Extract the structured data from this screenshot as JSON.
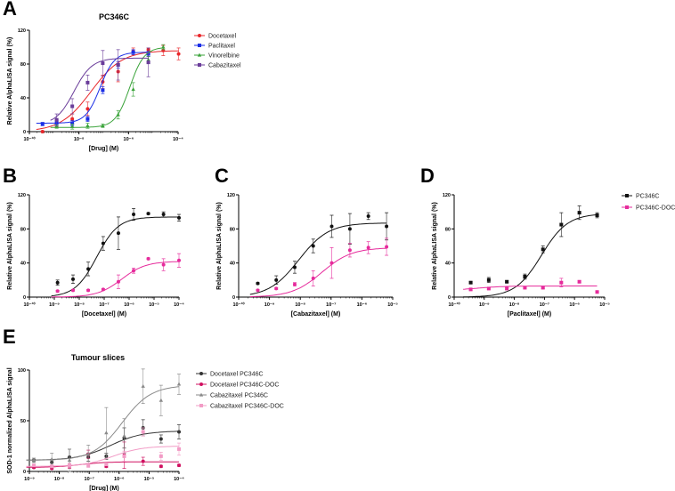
{
  "chart_data": [
    {
      "id": "A",
      "panel_label": "A",
      "type": "line",
      "title": "PC346C",
      "xlabel": "[Drug] (M)",
      "ylabel": "Relative AlphaLISA signal (%)",
      "xscale": "log10",
      "xlim_log10": [
        -10,
        -4
      ],
      "ylim": [
        0,
        120
      ],
      "xticks_log10": [
        -10,
        -8,
        -6,
        -4
      ],
      "xtick_labels": [
        "10⁻¹⁰",
        "10⁻⁸",
        "10⁻⁶",
        "10⁻⁴"
      ],
      "yticks": [
        0,
        40,
        80,
        120
      ],
      "ytick_labels": [
        "0",
        "40",
        "80",
        "120"
      ],
      "legend": "right",
      "series": [
        {
          "name": "Docetaxel",
          "color": "#e8262a",
          "marker": "circle",
          "x_log10": [
            -9.47,
            -8.9,
            -8.27,
            -7.65,
            -7.04,
            -6.42,
            -5.81,
            -5.2,
            -4.6,
            -3.98
          ],
          "y": [
            0,
            10,
            15,
            27,
            59,
            71,
            95,
            97,
            96,
            92
          ],
          "err": [
            1,
            4,
            6,
            8,
            8,
            12,
            4,
            2,
            6,
            7
          ],
          "fit": {
            "bottom": 0,
            "top": 96,
            "log_ec50": -7.5,
            "hill": 0.7
          }
        },
        {
          "name": "Paclitaxel",
          "color": "#1a2ee6",
          "marker": "square",
          "x_log10": [
            -9.47,
            -8.9,
            -8.27,
            -7.65,
            -7.04,
            -6.42,
            -5.81,
            -5.2
          ],
          "y": [
            9,
            10,
            10,
            15,
            49,
            79,
            94,
            92
          ],
          "err": [
            2,
            3,
            3,
            3,
            4,
            4,
            3,
            3
          ],
          "fit": {
            "bottom": 10,
            "top": 94,
            "log_ec50": -7.15,
            "hill": 1.5
          }
        },
        {
          "name": "Vinorelbine",
          "color": "#3aa33a",
          "marker": "triangle",
          "x_log10": [
            -8.9,
            -8.27,
            -7.65,
            -7.04,
            -6.42,
            -5.81,
            -5.2,
            -4.6
          ],
          "y": [
            6,
            6,
            7,
            7,
            20,
            50,
            85,
            100
          ],
          "err": [
            2,
            3,
            3,
            2,
            5,
            8,
            4,
            3
          ],
          "fit": {
            "bottom": 5,
            "top": 100,
            "log_ec50": -5.95,
            "hill": 1.5
          }
        },
        {
          "name": "Cabazitaxel",
          "color": "#6a3d9a",
          "marker": "square",
          "x_log10": [
            -8.9,
            -8.27,
            -7.65,
            -7.04,
            -6.42,
            -5.2
          ],
          "y": [
            14,
            30,
            58,
            81,
            79,
            82
          ],
          "err": [
            7,
            9,
            9,
            15,
            18,
            17
          ],
          "fit": {
            "bottom": 8,
            "top": 87,
            "log_ec50": -8.2,
            "hill": 1.2
          }
        }
      ]
    },
    {
      "id": "B",
      "panel_label": "B",
      "type": "line",
      "title": "",
      "xlabel": "[Docetaxel] (M)",
      "ylabel": "Relative AlphaLISA signal (%)",
      "xscale": "log10",
      "xlim_log10": [
        -10,
        -4
      ],
      "ylim": [
        0,
        120
      ],
      "xticks_log10": [
        -10,
        -9,
        -8,
        -7,
        -6,
        -5,
        -4
      ],
      "xtick_labels": [
        "10⁻¹⁰",
        "10⁻⁹",
        "10⁻⁸",
        "10⁻⁷",
        "10⁻⁶",
        "10⁻⁵",
        "10⁻⁴"
      ],
      "yticks": [
        0,
        40,
        80,
        120
      ],
      "ytick_labels": [
        "0",
        "40",
        "80",
        "120"
      ],
      "series": [
        {
          "name": "PC346C",
          "color": "#111111",
          "marker": "circle",
          "x_log10": [
            -8.87,
            -8.25,
            -7.64,
            -7.04,
            -6.43,
            -5.82,
            -5.23,
            -4.62,
            -4.0
          ],
          "y": [
            17,
            21,
            33,
            63,
            75,
            97,
            98,
            97,
            93
          ],
          "err": [
            3,
            5,
            8,
            8,
            19,
            7,
            1,
            3,
            4
          ],
          "fit": {
            "bottom": 0,
            "top": 94,
            "log_ec50": -7.3,
            "hill": 1.0
          }
        },
        {
          "name": "PC346C-DOC",
          "color": "#e62b9c",
          "marker": "circle",
          "x_log10": [
            -8.87,
            -8.25,
            -7.64,
            -7.04,
            -6.43,
            -5.82,
            -5.23,
            -4.62,
            -4.0
          ],
          "y": [
            7,
            8,
            8,
            9,
            18,
            31,
            45,
            38,
            43
          ],
          "err": [
            1,
            1,
            1,
            1,
            8,
            3,
            1,
            7,
            8
          ],
          "fit": {
            "bottom": 0,
            "top": 42,
            "log_ec50": -6.3,
            "hill": 0.9
          }
        }
      ]
    },
    {
      "id": "C",
      "panel_label": "C",
      "type": "line",
      "title": "",
      "xlabel": "[Cabazitaxel] (M)",
      "ylabel": "Relative AlphaLISA signal (%)",
      "xscale": "log10",
      "xlim_log10": [
        -10,
        -5
      ],
      "ylim": [
        0,
        120
      ],
      "xticks_log10": [
        -10,
        -9,
        -8,
        -7,
        -6,
        -5
      ],
      "xtick_labels": [
        "10⁻¹⁰",
        "10⁻⁹",
        "10⁻⁸",
        "10⁻⁷",
        "10⁻⁶",
        "10⁻⁵"
      ],
      "yticks": [
        0,
        40,
        80,
        120
      ],
      "ytick_labels": [
        "0",
        "40",
        "80",
        "120"
      ],
      "series": [
        {
          "name": "PC346C",
          "color": "#111111",
          "marker": "circle",
          "x_log10": [
            -9.38,
            -8.78,
            -8.18,
            -7.58,
            -6.98,
            -6.39,
            -5.79,
            -5.2
          ],
          "y": [
            16,
            20,
            35,
            60,
            83,
            80,
            95,
            83
          ],
          "err": [
            1,
            5,
            7,
            8,
            13,
            18,
            4,
            16
          ],
          "fit": {
            "bottom": 0,
            "top": 87,
            "log_ec50": -8.05,
            "hill": 0.9
          }
        },
        {
          "name": "PC346C-DOC",
          "color": "#e62b9c",
          "marker": "circle",
          "x_log10": [
            -9.38,
            -8.78,
            -8.18,
            -7.58,
            -6.98,
            -6.39,
            -5.79,
            -5.2
          ],
          "y": [
            8,
            10,
            15,
            22,
            40,
            55,
            58,
            59
          ],
          "err": [
            1,
            1,
            2,
            9,
            18,
            8,
            7,
            10
          ],
          "fit": {
            "bottom": 0,
            "top": 58,
            "log_ec50": -7.3,
            "hill": 0.9
          }
        }
      ]
    },
    {
      "id": "D",
      "panel_label": "D",
      "type": "line",
      "title": "",
      "xlabel": "[Paclitaxel] (M)",
      "ylabel": "Relative AlphaLISA signal (%)",
      "xscale": "log10",
      "xlim_log10": [
        -10,
        -5
      ],
      "ylim": [
        0,
        120
      ],
      "xticks_log10": [
        -10,
        -9,
        -8,
        -7,
        -6,
        -5
      ],
      "xtick_labels": [
        "10⁻¹⁰",
        "10⁻⁹",
        "10⁻⁸",
        "10⁻⁷",
        "10⁻⁶",
        "10⁻⁵"
      ],
      "yticks": [
        0,
        40,
        80,
        120
      ],
      "ytick_labels": [
        "0",
        "40",
        "80",
        "120"
      ],
      "legend": "right",
      "series": [
        {
          "name": "PC346C",
          "color": "#111111",
          "marker": "square",
          "x_log10": [
            -9.45,
            -8.85,
            -8.25,
            -7.65,
            -7.05,
            -6.44,
            -5.84,
            -5.25
          ],
          "y": [
            17,
            20,
            18,
            24,
            56,
            85,
            99,
            96
          ],
          "err": [
            1,
            3,
            1,
            3,
            4,
            14,
            8,
            3
          ],
          "fit": {
            "bottom": 0,
            "top": 98,
            "log_ec50": -7.1,
            "hill": 1.0
          }
        },
        {
          "name": "PC346C-DOC",
          "color": "#e62b9c",
          "marker": "square",
          "x_log10": [
            -9.45,
            -8.85,
            -8.25,
            -7.65,
            -7.05,
            -6.44,
            -5.84,
            -5.25
          ],
          "y": [
            9,
            10,
            10,
            11,
            11,
            17,
            18,
            6
          ],
          "err": [
            1,
            1,
            1,
            1,
            1,
            5,
            1,
            1
          ],
          "fit": {
            "bottom": 8,
            "top": 13,
            "log_ec50": -9.2,
            "hill": 1.0
          }
        }
      ]
    },
    {
      "id": "E",
      "panel_label": "E",
      "type": "line",
      "title": "Tumour slices",
      "xlabel": "[Drug] (M)",
      "ylabel": "SOD-1 normalized AlphaLISA signal",
      "xscale": "log10",
      "xlim_log10": [
        -9,
        -4
      ],
      "ylim": [
        0,
        100
      ],
      "xticks_log10": [
        -9,
        -8,
        -7,
        -6,
        -5,
        -4
      ],
      "xtick_labels": [
        "10⁻⁹",
        "10⁻⁸",
        "10⁻⁷",
        "10⁻⁶",
        "10⁻⁵",
        "10⁻⁴"
      ],
      "yticks": [
        0,
        50,
        100
      ],
      "ytick_labels": [
        "0",
        "50",
        "100"
      ],
      "legend": "right",
      "series": [
        {
          "name": "Docetaxel PC346C",
          "color": "#333333",
          "marker": "circle",
          "x_log10": [
            -8.85,
            -8.25,
            -7.66,
            -7.03,
            -6.43,
            -5.83,
            -5.2,
            -4.6,
            -4.0
          ],
          "y": [
            11,
            9,
            14,
            14,
            15,
            33,
            43,
            32,
            39
          ],
          "err": [
            2,
            3,
            8,
            4,
            3,
            10,
            8,
            4,
            7
          ],
          "fit": {
            "bottom": 11,
            "top": 40,
            "log_ec50": -6.3,
            "hill": 0.8
          }
        },
        {
          "name": "Docetaxel PC346C-DOC",
          "color": "#d01060",
          "marker": "circle",
          "x_log10": [
            -8.85,
            -8.25,
            -7.66,
            -7.03,
            -6.43,
            -5.83,
            -5.2,
            -4.6,
            -4.0
          ],
          "y": [
            4,
            3,
            5,
            17,
            5,
            16,
            10,
            5,
            6
          ],
          "err": [
            1,
            1,
            2,
            4,
            1,
            13,
            4,
            1,
            1
          ],
          "fit": {
            "bottom": 4,
            "top": 9.5,
            "log_ec50": -7.3,
            "hill": 1.0
          }
        },
        {
          "name": "Cabazitaxel PC346C",
          "color": "#8a8a8a",
          "marker": "triangle",
          "x_log10": [
            -8.85,
            -8.25,
            -7.66,
            -7.03,
            -6.43,
            -5.83,
            -5.2,
            -4.6,
            -4.0
          ],
          "y": [
            11,
            12,
            11,
            17,
            38,
            35,
            84,
            70,
            86
          ],
          "err": [
            2,
            6,
            11,
            9,
            25,
            17,
            17,
            15,
            10
          ],
          "fit": {
            "bottom": 11,
            "top": 85,
            "log_ec50": -5.9,
            "hill": 0.9
          }
        },
        {
          "name": "Cabazitaxel PC346C-DOC",
          "color": "#f29cc6",
          "marker": "square",
          "x_log10": [
            -8.85,
            -8.25,
            -7.66,
            -7.03,
            -6.43,
            -5.83,
            -5.2,
            -4.6,
            -4.0
          ],
          "y": [
            6,
            5,
            6,
            6,
            7,
            15,
            39,
            15,
            22
          ],
          "err": [
            1,
            1,
            2,
            2,
            1,
            5,
            4,
            4,
            6
          ],
          "fit": {
            "bottom": 5,
            "top": 25,
            "log_ec50": -6.2,
            "hill": 0.9
          }
        }
      ]
    }
  ]
}
